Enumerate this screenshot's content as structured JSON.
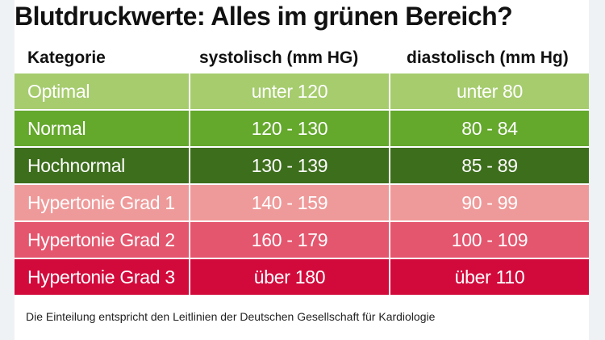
{
  "title": "Blutdruckwerte: Alles im grünen Bereich?",
  "columns": [
    "Kategorie",
    "systolisch (mm HG)",
    "diastolisch (mm Hg)"
  ],
  "rows": [
    {
      "category": "Optimal",
      "systolic": "unter 120",
      "diastolic": "unter 80",
      "color": "#a6cc6e"
    },
    {
      "category": "Normal",
      "systolic": "120 - 130",
      "diastolic": "80 - 84",
      "color": "#64a82c"
    },
    {
      "category": "Hochnormal",
      "systolic": "130 - 139",
      "diastolic": "85 - 89",
      "color": "#3d6e1c"
    },
    {
      "category": "Hypertonie Grad 1",
      "systolic": "140 - 159",
      "diastolic": "90 - 99",
      "color": "#ef9a9a"
    },
    {
      "category": "Hypertonie Grad 2",
      "systolic": "160 - 179",
      "diastolic": "100 - 109",
      "color": "#e4566e"
    },
    {
      "category": "Hypertonie Grad 3",
      "systolic": "über 180",
      "diastolic": "über 110",
      "color": "#d20a3c"
    }
  ],
  "footnote": "Die Einteilung entspricht den Leitlinien der Deutschen Gesellschaft für Kardiologie"
}
